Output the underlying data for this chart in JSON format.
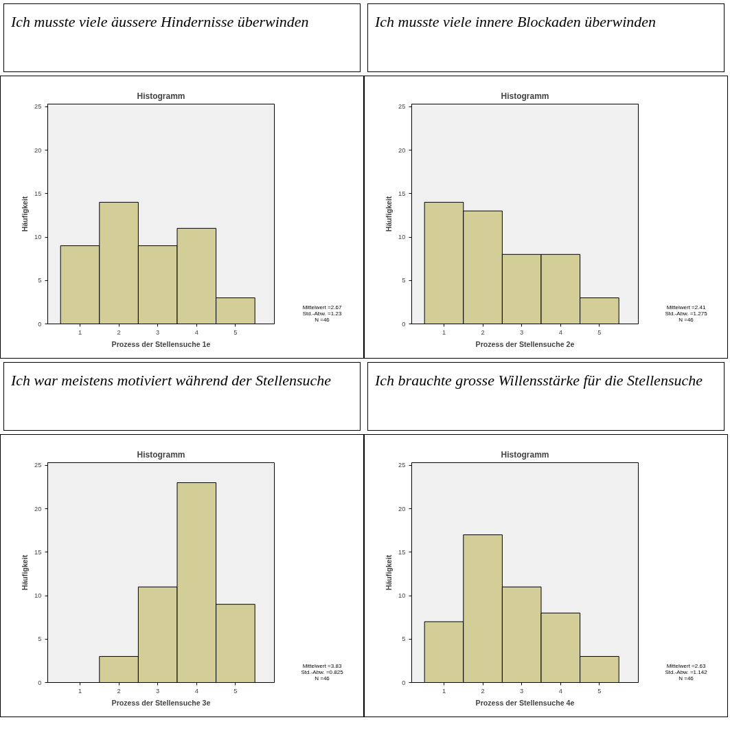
{
  "chart_data": [
    {
      "type": "histogram",
      "subtitle": "Ich musste viele äussere Hindernisse überwinden",
      "title": "Histogramm",
      "xlabel": "Prozess der Stellensuche 1e",
      "ylabel": "Häufigkeit",
      "bins": [
        0.5,
        1.5,
        2.5,
        3.5,
        4.5,
        5.5
      ],
      "values": [
        9,
        14,
        9,
        11,
        3
      ],
      "color": "#d3ce98",
      "xlim": [
        0.17,
        6.0
      ],
      "ylim": [
        0,
        25.3
      ],
      "xticks": [
        1,
        2,
        3,
        4,
        5
      ],
      "yticks": [
        0,
        5,
        10,
        15,
        20,
        25
      ],
      "annotations": [
        "Mittelwert =2.67",
        "Std.-Abw. =1.23",
        "N =46"
      ],
      "grid": false
    },
    {
      "type": "histogram",
      "subtitle": "Ich musste viele innere Blockaden überwinden",
      "title": "Histogramm",
      "xlabel": "Prozess der Stellensuche 2e",
      "ylabel": "Häufigkeit",
      "bins": [
        0.5,
        1.5,
        2.5,
        3.5,
        4.5,
        5.5
      ],
      "values": [
        14,
        13,
        8,
        8,
        3
      ],
      "color": "#d3ce98",
      "xlim": [
        0.17,
        6.0
      ],
      "ylim": [
        0,
        25.3
      ],
      "xticks": [
        1,
        2,
        3,
        4,
        5
      ],
      "yticks": [
        0,
        5,
        10,
        15,
        20,
        25
      ],
      "annotations": [
        "Mittelwert =2.41",
        "Std.-Abw. =1.275",
        "N =46"
      ],
      "grid": false
    },
    {
      "type": "histogram",
      "subtitle": "Ich war meistens motiviert während der Stellensuche",
      "title": "Histogramm",
      "xlabel": "Prozess der Stellensuche 3e",
      "ylabel": "Häufigkeit",
      "bins": [
        0.5,
        1.5,
        2.5,
        3.5,
        4.5,
        5.5
      ],
      "values": [
        0,
        3,
        11,
        23,
        9
      ],
      "color": "#d3ce98",
      "xlim": [
        0.17,
        6.0
      ],
      "ylim": [
        0,
        25.3
      ],
      "xticks": [
        1,
        2,
        3,
        4,
        5
      ],
      "yticks": [
        0,
        5,
        10,
        15,
        20,
        25
      ],
      "annotations": [
        "Mittelwert =3.83",
        "Std.-Abw. =0.825",
        "N =46"
      ],
      "grid": false
    },
    {
      "type": "histogram",
      "subtitle": "Ich brauchte grosse Willensstärke für die Stellensuche",
      "title": "Histogramm",
      "xlabel": "Prozess der Stellensuche 4e",
      "ylabel": "Häufigkeit",
      "bins": [
        0.5,
        1.5,
        2.5,
        3.5,
        4.5,
        5.5
      ],
      "values": [
        7,
        17,
        11,
        8,
        3
      ],
      "color": "#d3ce98",
      "xlim": [
        0.17,
        6.0
      ],
      "ylim": [
        0,
        25.3
      ],
      "xticks": [
        1,
        2,
        3,
        4,
        5
      ],
      "yticks": [
        0,
        5,
        10,
        15,
        20,
        25
      ],
      "annotations": [
        "Mittelwert =2.63",
        "Std.-Abw. =1.142",
        "N =46"
      ],
      "grid": false
    }
  ]
}
